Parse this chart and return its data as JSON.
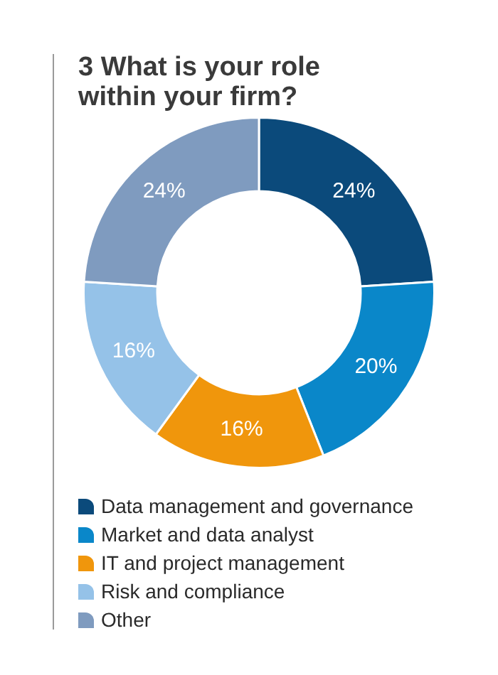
{
  "chart_data": {
    "type": "donut",
    "title": "3 What is your role within your firm?",
    "categories": [
      "Data management and governance",
      "Market and data analyst",
      "IT and project management",
      "Risk and compliance",
      "Other"
    ],
    "values": [
      24,
      20,
      16,
      16,
      24
    ],
    "colors": [
      "#0b4a7b",
      "#0a87c9",
      "#f0960c",
      "#95c2e8",
      "#7f9bbf"
    ],
    "value_labels": [
      "24%",
      "20%",
      "16%",
      "16%",
      "24%"
    ],
    "legend": "bottom"
  }
}
